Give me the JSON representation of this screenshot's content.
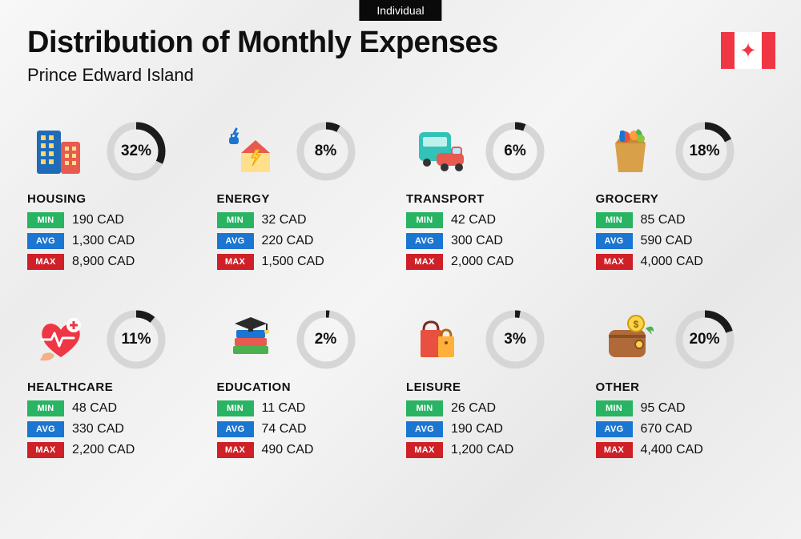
{
  "tag": "Individual",
  "title": "Distribution of Monthly Expenses",
  "subtitle": "Prince Edward Island",
  "labels": {
    "min": "MIN",
    "avg": "AVG",
    "max": "MAX"
  },
  "badge_colors": {
    "min": "#28b463",
    "avg": "#1b76d2",
    "max": "#cf2027"
  },
  "donut": {
    "track_color": "#d6d6d6",
    "arc_color": "#1b1b1b",
    "stroke_width": 9,
    "radius": 32
  },
  "flag_bar_color": "#ef3644",
  "categories": [
    {
      "name": "HOUSING",
      "pct": 32,
      "min": "190 CAD",
      "avg": "1,300 CAD",
      "max": "8,900 CAD",
      "icon": "buildings"
    },
    {
      "name": "ENERGY",
      "pct": 8,
      "min": "32 CAD",
      "avg": "220 CAD",
      "max": "1,500 CAD",
      "icon": "energy"
    },
    {
      "name": "TRANSPORT",
      "pct": 6,
      "min": "42 CAD",
      "avg": "300 CAD",
      "max": "2,000 CAD",
      "icon": "transport"
    },
    {
      "name": "GROCERY",
      "pct": 18,
      "min": "85 CAD",
      "avg": "590 CAD",
      "max": "4,000 CAD",
      "icon": "grocery"
    },
    {
      "name": "HEALTHCARE",
      "pct": 11,
      "min": "48 CAD",
      "avg": "330 CAD",
      "max": "2,200 CAD",
      "icon": "healthcare"
    },
    {
      "name": "EDUCATION",
      "pct": 2,
      "min": "11 CAD",
      "avg": "74 CAD",
      "max": "490 CAD",
      "icon": "education"
    },
    {
      "name": "LEISURE",
      "pct": 3,
      "min": "26 CAD",
      "avg": "190 CAD",
      "max": "1,200 CAD",
      "icon": "leisure"
    },
    {
      "name": "OTHER",
      "pct": 20,
      "min": "95 CAD",
      "avg": "670 CAD",
      "max": "4,400 CAD",
      "icon": "other"
    }
  ]
}
